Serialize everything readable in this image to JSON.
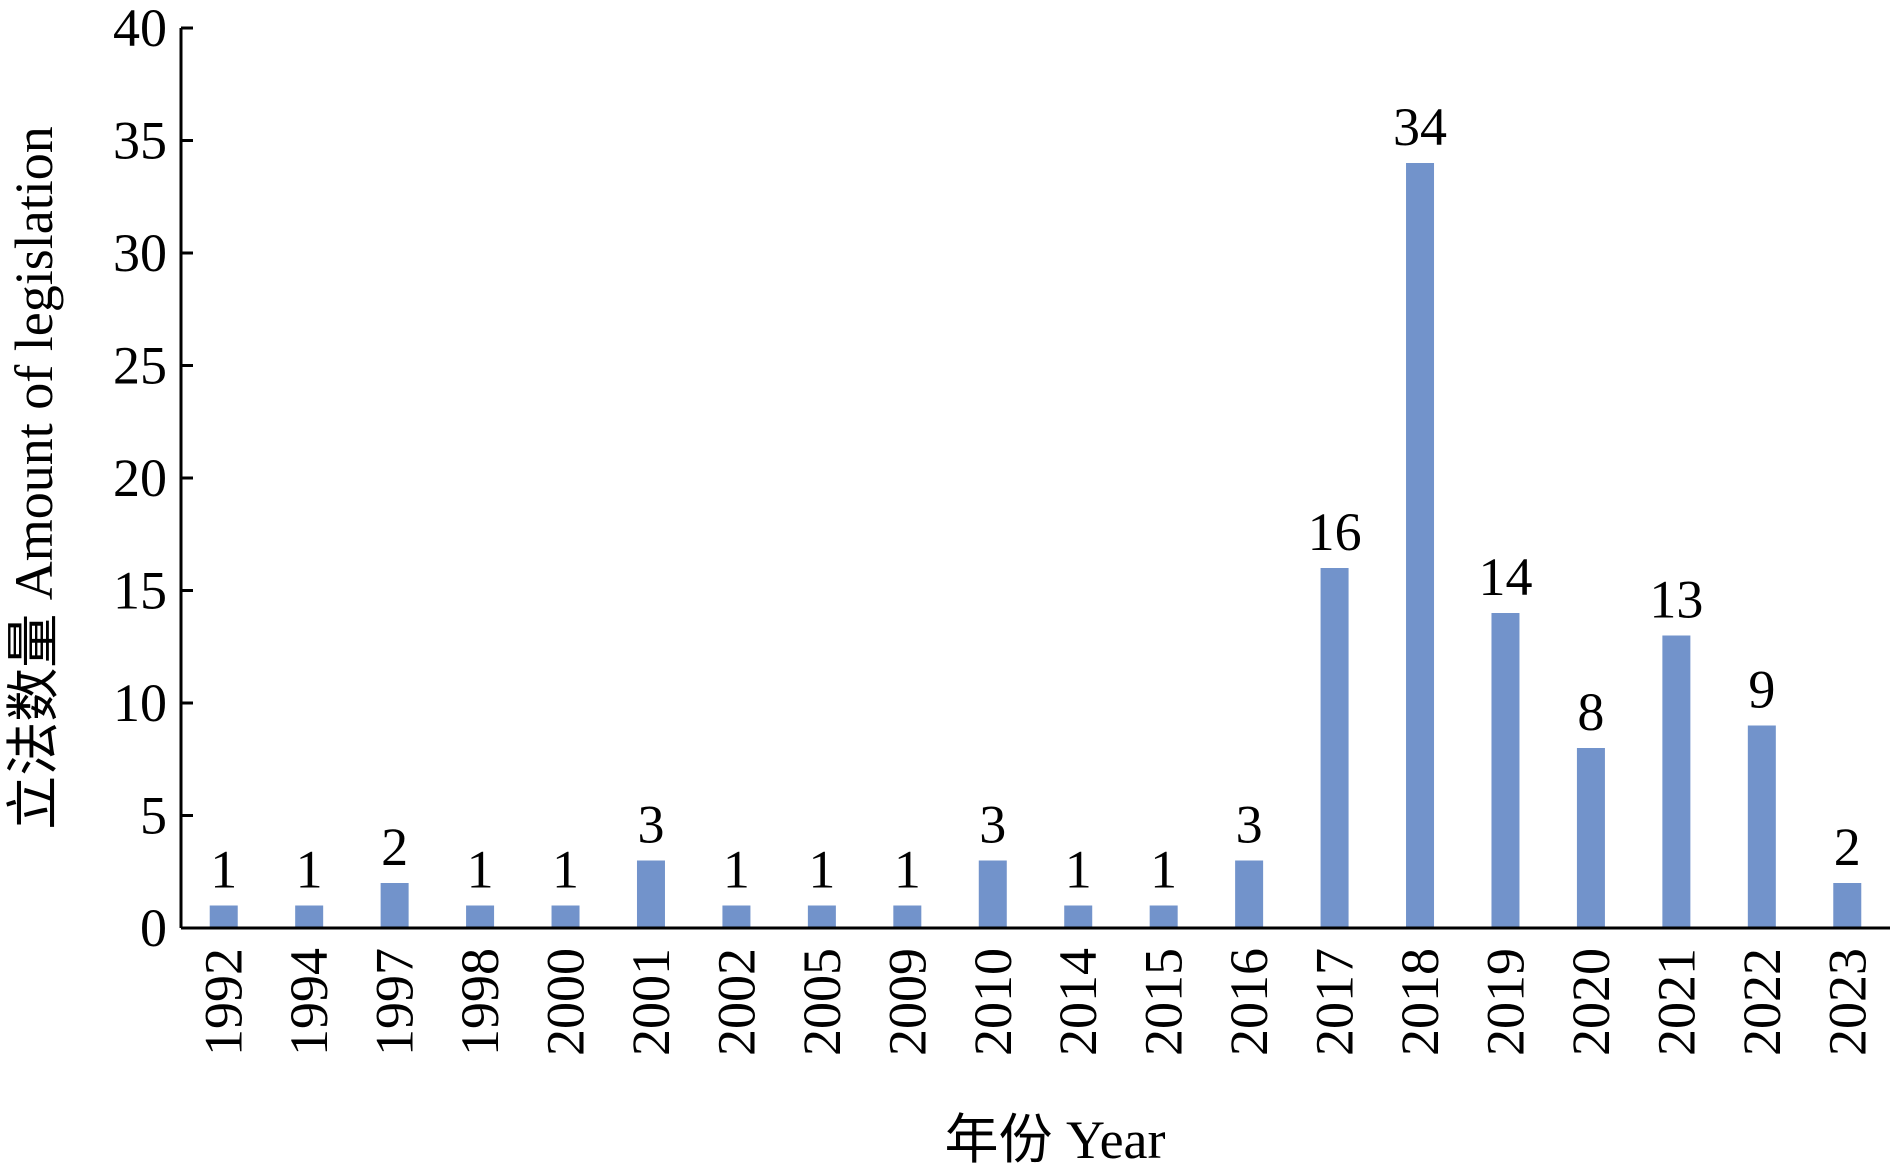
{
  "chart_data": {
    "type": "bar",
    "xlabel": "年份 Year",
    "ylabel": "立法数量 Amount of legislation",
    "categories": [
      "1992",
      "1994",
      "1997",
      "1998",
      "2000",
      "2001",
      "2002",
      "2005",
      "2009",
      "2010",
      "2014",
      "2015",
      "2016",
      "2017",
      "2018",
      "2019",
      "2020",
      "2021",
      "2022",
      "2023"
    ],
    "series": [
      {
        "values": [
          1,
          1,
          2,
          1,
          1,
          3,
          1,
          1,
          1,
          3,
          1,
          1,
          3,
          16,
          34,
          14,
          8,
          13,
          9,
          2
        ]
      }
    ],
    "data_labels": [
      "1",
      "1",
      "2",
      "1",
      "1",
      "3",
      "1",
      "1",
      "1",
      "3",
      "1",
      "1",
      "3",
      "16",
      "34",
      "14",
      "8",
      "13",
      "9",
      "2"
    ],
    "yticks": [
      0,
      5,
      10,
      15,
      20,
      25,
      30,
      35,
      40
    ],
    "ylim": [
      0,
      40
    ],
    "grid": false,
    "bar_color": "#7293cb",
    "axis_color": "#000000"
  }
}
